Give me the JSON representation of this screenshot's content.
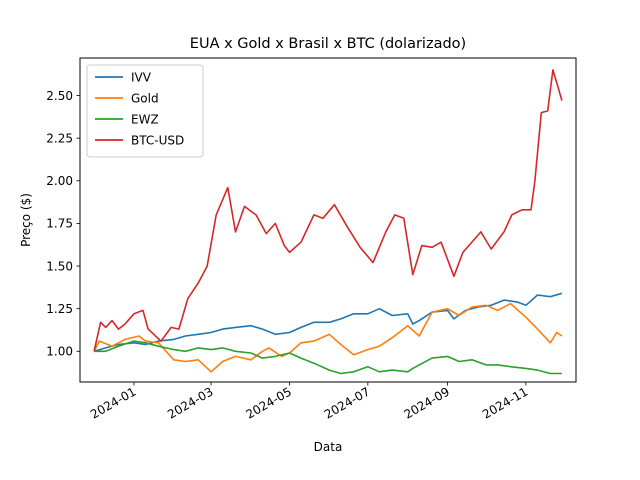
{
  "chart_data": {
    "type": "line",
    "title": "EUA x Gold x Brasil x BTC (dolarizado)",
    "xlabel": "Data",
    "ylabel": "Preço ($)",
    "xlim": [
      "2023-11-20",
      "2024-12-10"
    ],
    "ylim": [
      0.82,
      2.72
    ],
    "yticks": [
      1.0,
      1.25,
      1.5,
      1.75,
      2.0,
      2.25,
      2.5
    ],
    "xticks": [
      {
        "date": "2024-01-01",
        "label": "2024-01"
      },
      {
        "date": "2024-03-01",
        "label": "2024-03"
      },
      {
        "date": "2024-05-01",
        "label": "2024-05"
      },
      {
        "date": "2024-07-01",
        "label": "2024-07"
      },
      {
        "date": "2024-09-01",
        "label": "2024-09"
      },
      {
        "date": "2024-11-01",
        "label": "2024-11"
      }
    ],
    "grid": false,
    "legend_position": "upper left",
    "series": [
      {
        "name": "IVV",
        "color": "#1f77b4",
        "points": [
          [
            "2023-12-01",
            1.0
          ],
          [
            "2023-12-10",
            1.02
          ],
          [
            "2023-12-20",
            1.04
          ],
          [
            "2024-01-01",
            1.05
          ],
          [
            "2024-01-10",
            1.04
          ],
          [
            "2024-01-20",
            1.06
          ],
          [
            "2024-02-01",
            1.07
          ],
          [
            "2024-02-10",
            1.09
          ],
          [
            "2024-02-20",
            1.1
          ],
          [
            "2024-03-01",
            1.11
          ],
          [
            "2024-03-10",
            1.13
          ],
          [
            "2024-03-20",
            1.14
          ],
          [
            "2024-04-01",
            1.15
          ],
          [
            "2024-04-10",
            1.13
          ],
          [
            "2024-04-20",
            1.1
          ],
          [
            "2024-05-01",
            1.11
          ],
          [
            "2024-05-10",
            1.14
          ],
          [
            "2024-05-20",
            1.17
          ],
          [
            "2024-06-01",
            1.17
          ],
          [
            "2024-06-10",
            1.19
          ],
          [
            "2024-06-20",
            1.22
          ],
          [
            "2024-07-01",
            1.22
          ],
          [
            "2024-07-10",
            1.25
          ],
          [
            "2024-07-20",
            1.21
          ],
          [
            "2024-08-01",
            1.22
          ],
          [
            "2024-08-05",
            1.16
          ],
          [
            "2024-08-10",
            1.18
          ],
          [
            "2024-08-20",
            1.23
          ],
          [
            "2024-09-01",
            1.24
          ],
          [
            "2024-09-06",
            1.19
          ],
          [
            "2024-09-15",
            1.24
          ],
          [
            "2024-09-25",
            1.26
          ],
          [
            "2024-10-05",
            1.27
          ],
          [
            "2024-10-15",
            1.3
          ],
          [
            "2024-10-25",
            1.29
          ],
          [
            "2024-11-01",
            1.27
          ],
          [
            "2024-11-10",
            1.33
          ],
          [
            "2024-11-20",
            1.32
          ],
          [
            "2024-11-29",
            1.34
          ]
        ]
      },
      {
        "name": "Gold",
        "color": "#ff7f0e",
        "points": [
          [
            "2023-12-01",
            1.0
          ],
          [
            "2023-12-05",
            1.06
          ],
          [
            "2023-12-15",
            1.03
          ],
          [
            "2023-12-25",
            1.07
          ],
          [
            "2024-01-05",
            1.09
          ],
          [
            "2024-01-10",
            1.06
          ],
          [
            "2024-01-20",
            1.05
          ],
          [
            "2024-02-01",
            0.95
          ],
          [
            "2024-02-10",
            0.94
          ],
          [
            "2024-02-20",
            0.95
          ],
          [
            "2024-03-01",
            0.88
          ],
          [
            "2024-03-10",
            0.94
          ],
          [
            "2024-03-20",
            0.97
          ],
          [
            "2024-04-01",
            0.95
          ],
          [
            "2024-04-10",
            1.0
          ],
          [
            "2024-04-15",
            1.02
          ],
          [
            "2024-04-25",
            0.97
          ],
          [
            "2024-05-01",
            0.99
          ],
          [
            "2024-05-10",
            1.05
          ],
          [
            "2024-05-20",
            1.06
          ],
          [
            "2024-06-01",
            1.1
          ],
          [
            "2024-06-10",
            1.04
          ],
          [
            "2024-06-20",
            0.98
          ],
          [
            "2024-07-01",
            1.01
          ],
          [
            "2024-07-10",
            1.03
          ],
          [
            "2024-07-20",
            1.08
          ],
          [
            "2024-08-01",
            1.15
          ],
          [
            "2024-08-10",
            1.09
          ],
          [
            "2024-08-20",
            1.23
          ],
          [
            "2024-09-01",
            1.25
          ],
          [
            "2024-09-10",
            1.21
          ],
          [
            "2024-09-20",
            1.26
          ],
          [
            "2024-10-01",
            1.27
          ],
          [
            "2024-10-10",
            1.24
          ],
          [
            "2024-10-20",
            1.28
          ],
          [
            "2024-11-01",
            1.2
          ],
          [
            "2024-11-10",
            1.13
          ],
          [
            "2024-11-20",
            1.05
          ],
          [
            "2024-11-25",
            1.11
          ],
          [
            "2024-11-29",
            1.09
          ]
        ]
      },
      {
        "name": "EWZ",
        "color": "#2ca02c",
        "points": [
          [
            "2023-12-01",
            1.0
          ],
          [
            "2023-12-10",
            1.0
          ],
          [
            "2023-12-20",
            1.03
          ],
          [
            "2024-01-01",
            1.06
          ],
          [
            "2024-01-10",
            1.05
          ],
          [
            "2024-01-20",
            1.03
          ],
          [
            "2024-02-01",
            1.01
          ],
          [
            "2024-02-10",
            1.0
          ],
          [
            "2024-02-20",
            1.02
          ],
          [
            "2024-03-01",
            1.01
          ],
          [
            "2024-03-10",
            1.02
          ],
          [
            "2024-03-20",
            1.0
          ],
          [
            "2024-04-01",
            0.99
          ],
          [
            "2024-04-10",
            0.96
          ],
          [
            "2024-04-20",
            0.97
          ],
          [
            "2024-05-01",
            0.99
          ],
          [
            "2024-05-10",
            0.96
          ],
          [
            "2024-05-20",
            0.93
          ],
          [
            "2024-06-01",
            0.89
          ],
          [
            "2024-06-10",
            0.87
          ],
          [
            "2024-06-20",
            0.88
          ],
          [
            "2024-07-01",
            0.91
          ],
          [
            "2024-07-10",
            0.88
          ],
          [
            "2024-07-20",
            0.89
          ],
          [
            "2024-08-01",
            0.88
          ],
          [
            "2024-08-05",
            0.9
          ],
          [
            "2024-08-10",
            0.92
          ],
          [
            "2024-08-20",
            0.96
          ],
          [
            "2024-09-01",
            0.97
          ],
          [
            "2024-09-10",
            0.94
          ],
          [
            "2024-09-20",
            0.95
          ],
          [
            "2024-10-01",
            0.92
          ],
          [
            "2024-10-10",
            0.92
          ],
          [
            "2024-10-20",
            0.91
          ],
          [
            "2024-11-01",
            0.9
          ],
          [
            "2024-11-10",
            0.89
          ],
          [
            "2024-11-20",
            0.87
          ],
          [
            "2024-11-29",
            0.87
          ]
        ]
      },
      {
        "name": "BTC-USD",
        "color": "#d62728",
        "points": [
          [
            "2023-12-01",
            1.0
          ],
          [
            "2023-12-06",
            1.17
          ],
          [
            "2023-12-10",
            1.14
          ],
          [
            "2023-12-15",
            1.18
          ],
          [
            "2023-12-20",
            1.13
          ],
          [
            "2023-12-25",
            1.16
          ],
          [
            "2024-01-01",
            1.22
          ],
          [
            "2024-01-08",
            1.24
          ],
          [
            "2024-01-12",
            1.13
          ],
          [
            "2024-01-22",
            1.06
          ],
          [
            "2024-01-30",
            1.14
          ],
          [
            "2024-02-05",
            1.13
          ],
          [
            "2024-02-12",
            1.31
          ],
          [
            "2024-02-20",
            1.4
          ],
          [
            "2024-02-27",
            1.5
          ],
          [
            "2024-03-05",
            1.8
          ],
          [
            "2024-03-14",
            1.96
          ],
          [
            "2024-03-20",
            1.7
          ],
          [
            "2024-03-27",
            1.85
          ],
          [
            "2024-04-05",
            1.8
          ],
          [
            "2024-04-13",
            1.69
          ],
          [
            "2024-04-20",
            1.75
          ],
          [
            "2024-04-27",
            1.62
          ],
          [
            "2024-05-01",
            1.58
          ],
          [
            "2024-05-10",
            1.64
          ],
          [
            "2024-05-20",
            1.8
          ],
          [
            "2024-05-27",
            1.78
          ],
          [
            "2024-06-05",
            1.86
          ],
          [
            "2024-06-15",
            1.73
          ],
          [
            "2024-06-25",
            1.61
          ],
          [
            "2024-07-05",
            1.52
          ],
          [
            "2024-07-15",
            1.7
          ],
          [
            "2024-07-22",
            1.8
          ],
          [
            "2024-07-29",
            1.78
          ],
          [
            "2024-08-05",
            1.45
          ],
          [
            "2024-08-12",
            1.62
          ],
          [
            "2024-08-20",
            1.61
          ],
          [
            "2024-08-27",
            1.64
          ],
          [
            "2024-09-06",
            1.44
          ],
          [
            "2024-09-13",
            1.58
          ],
          [
            "2024-09-27",
            1.7
          ],
          [
            "2024-10-05",
            1.6
          ],
          [
            "2024-10-15",
            1.7
          ],
          [
            "2024-10-21",
            1.8
          ],
          [
            "2024-10-29",
            1.83
          ],
          [
            "2024-11-05",
            1.83
          ],
          [
            "2024-11-08",
            2.0
          ],
          [
            "2024-11-13",
            2.4
          ],
          [
            "2024-11-18",
            2.41
          ],
          [
            "2024-11-22",
            2.65
          ],
          [
            "2024-11-26",
            2.55
          ],
          [
            "2024-11-29",
            2.47
          ]
        ]
      }
    ]
  }
}
